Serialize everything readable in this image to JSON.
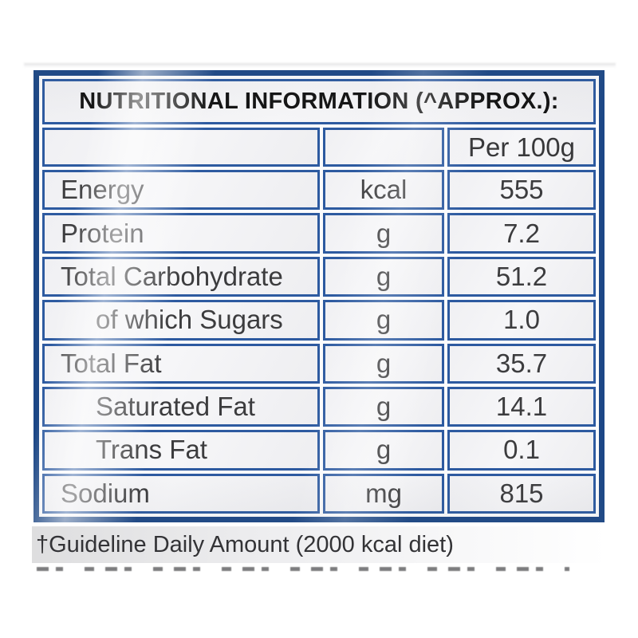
{
  "table": {
    "title": "NUTRITIONAL INFORMATION (^APPROX.):",
    "column_headers": {
      "label_col": "",
      "unit_col": "",
      "value_col": "Per 100g"
    },
    "rows": [
      {
        "label": "Energy",
        "unit": "kcal",
        "value": "555",
        "indent": false
      },
      {
        "label": "Protein",
        "unit": "g",
        "value": "7.2",
        "indent": false
      },
      {
        "label": "Total Carbohydrate",
        "unit": "g",
        "value": "51.2",
        "indent": false
      },
      {
        "label": "of which Sugars",
        "unit": "g",
        "value": "1.0",
        "indent": true
      },
      {
        "label": "Total Fat",
        "unit": "g",
        "value": "35.7",
        "indent": false
      },
      {
        "label": "Saturated Fat",
        "unit": "g",
        "value": "14.1",
        "indent": true
      },
      {
        "label": "Trans Fat",
        "unit": "g",
        "value": "0.1",
        "indent": true
      },
      {
        "label": "Sodium",
        "unit": "mg",
        "value": "815",
        "indent": false
      }
    ],
    "colors": {
      "outer_border": "#1c4786",
      "inner_border": "#2d5aa0",
      "cell_background": "#f2f2f4",
      "text": "#3c3c3e"
    }
  },
  "footnote": "†Guideline Daily Amount (2000 kcal diet)"
}
